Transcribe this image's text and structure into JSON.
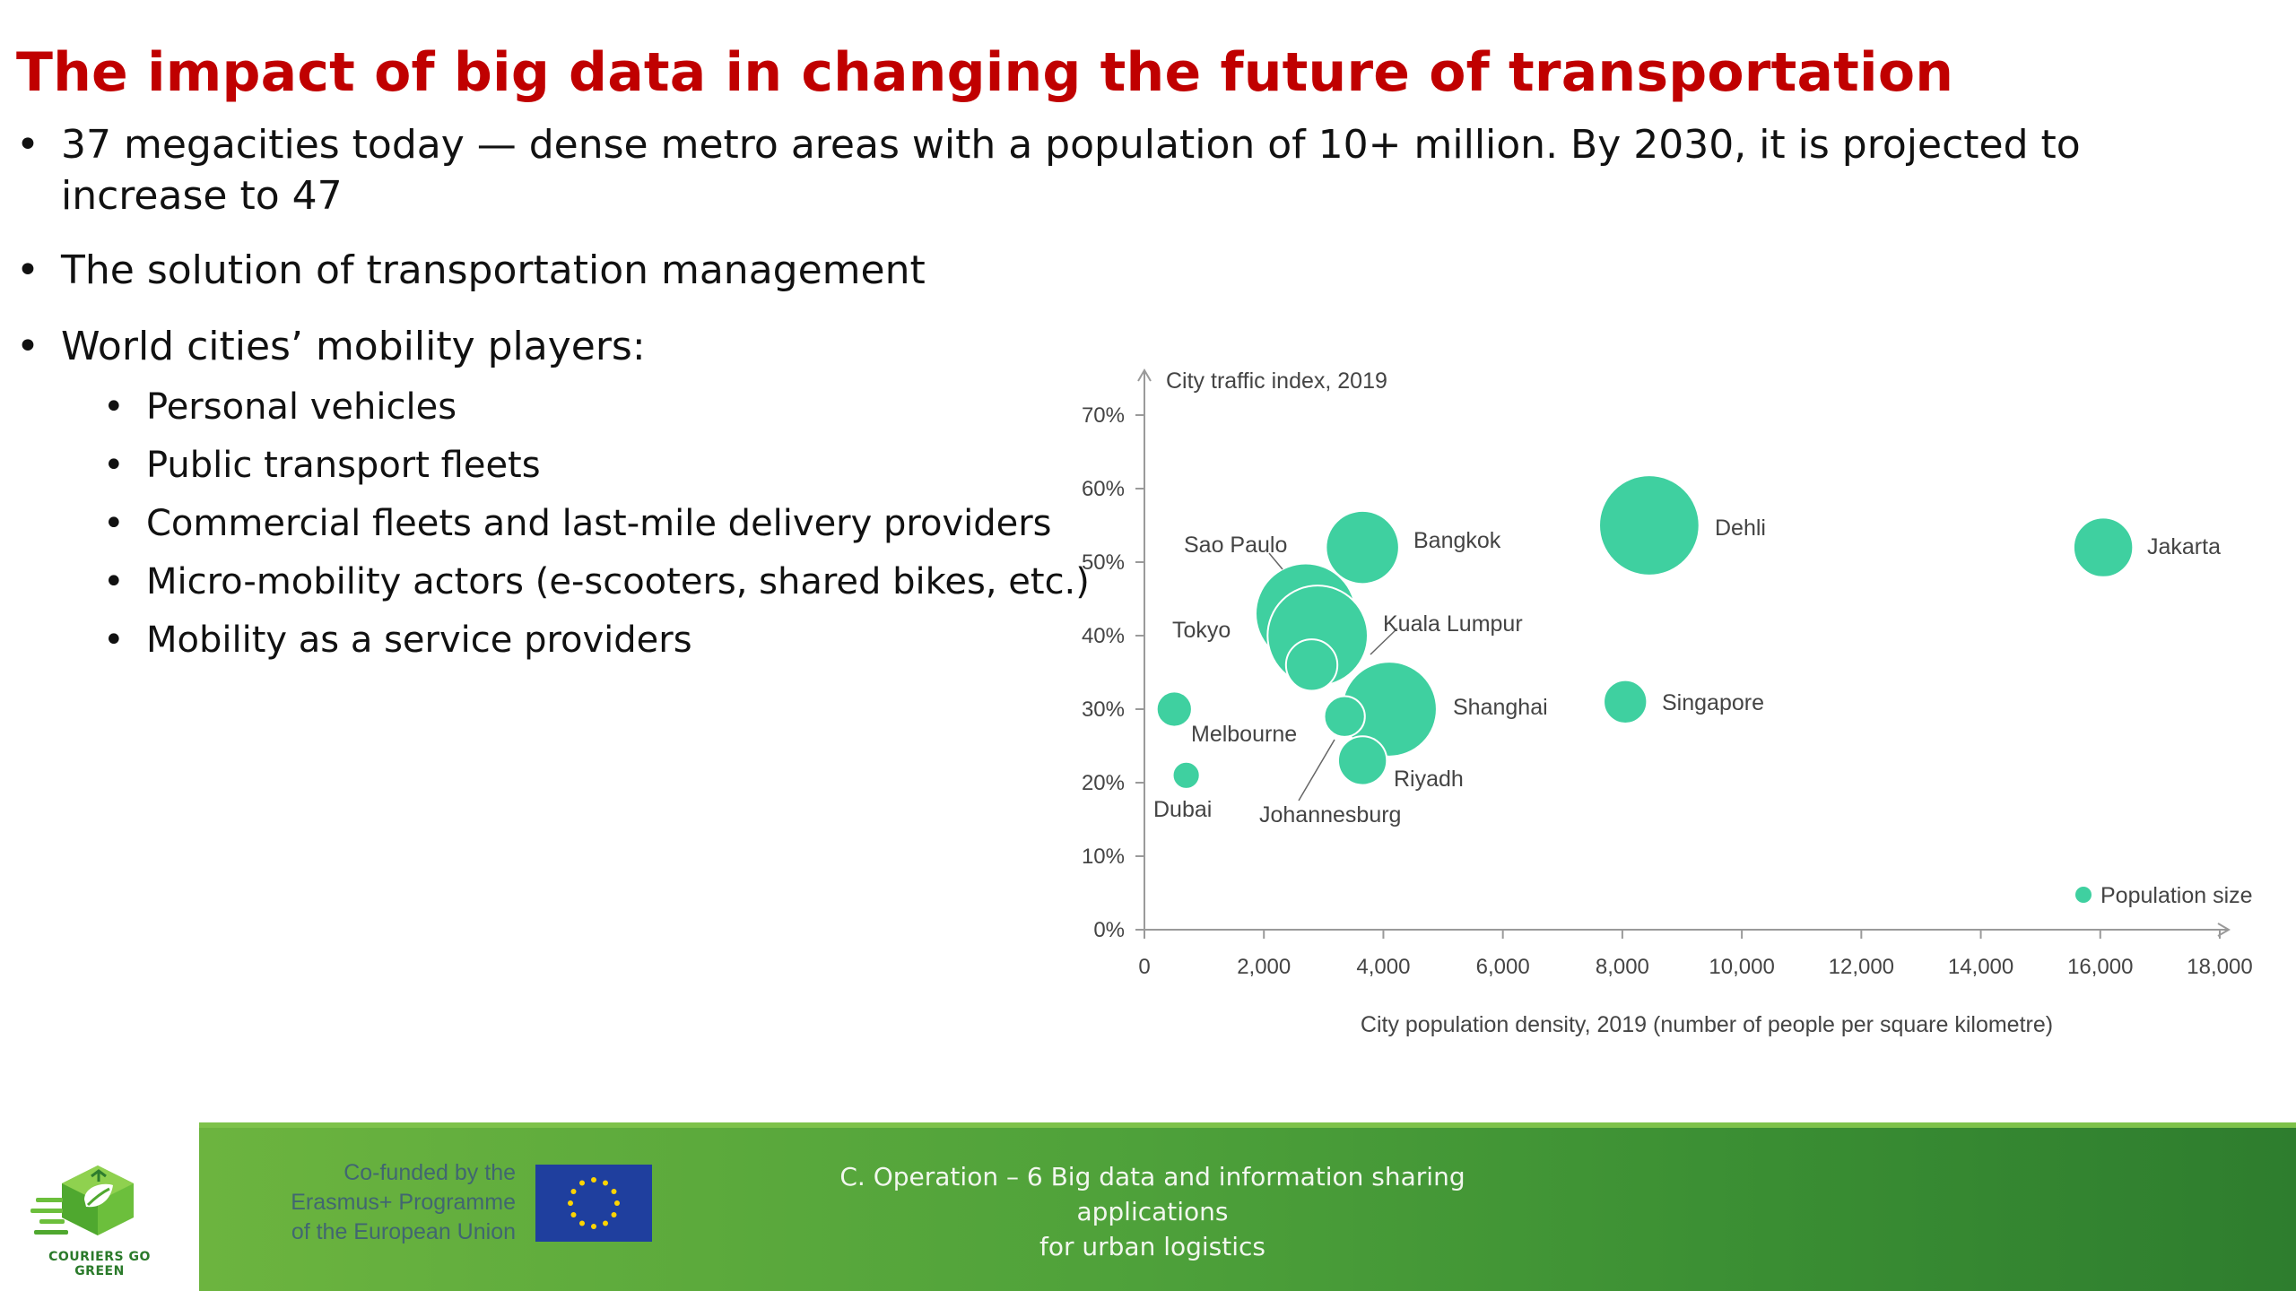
{
  "title": "The impact of big data in changing the future of transportation",
  "bullets": [
    "37 megacities today — dense metro areas with a population of 10+ million. By 2030, it is projected to increase to 47",
    "The solution of transportation management",
    "World cities’ mobility players:"
  ],
  "sub_bullets": [
    "Personal vehicles",
    "Public transport fleets",
    "Commercial fleets and last-mile delivery providers",
    "Micro-mobility actors (e-scooters, shared bikes, etc.)",
    "Mobility as a service providers"
  ],
  "bullet_char": "•",
  "chart_data": {
    "type": "scatter",
    "variant": "bubble",
    "ylabel": "City traffic index, 2019",
    "xlabel": "City population density, 2019 (number of people per square kilometre)",
    "xlim": [
      0,
      18000
    ],
    "ylim": [
      0,
      70
    ],
    "xticks": [
      0,
      2000,
      4000,
      6000,
      8000,
      10000,
      12000,
      14000,
      16000,
      18000
    ],
    "xtick_labels": [
      "0",
      "2,000",
      "4,000",
      "6,000",
      "8,000",
      "10,000",
      "12,000",
      "14,000",
      "16,000",
      "18,000"
    ],
    "yticks": [
      0,
      10,
      20,
      30,
      40,
      50,
      60,
      70
    ],
    "ytick_labels": [
      "0%",
      "10%",
      "20%",
      "30%",
      "40%",
      "50%",
      "60%",
      "70%"
    ],
    "legend": {
      "label": "Population size",
      "position": "bottom-right"
    },
    "bubble_color": "#3fd0a0",
    "grid": false,
    "points": [
      {
        "name": "Sao Paulo",
        "x": 2700,
        "y": 43,
        "size": 37
      },
      {
        "name": "Tokyo",
        "x": 2900,
        "y": 40,
        "size": 37
      },
      {
        "name": "Bangkok",
        "x": 3650,
        "y": 52,
        "size": 27
      },
      {
        "name": "Dehli",
        "x": 8450,
        "y": 55,
        "size": 37
      },
      {
        "name": "Jakarta",
        "x": 16050,
        "y": 52,
        "size": 22
      },
      {
        "name": "Kuala Lumpur",
        "x": 2800,
        "y": 36,
        "size": 19
      },
      {
        "name": "Shanghai",
        "x": 4100,
        "y": 30,
        "size": 35
      },
      {
        "name": "Singapore",
        "x": 8050,
        "y": 31,
        "size": 16
      },
      {
        "name": "Melbourne",
        "x": 500,
        "y": 30,
        "size": 13
      },
      {
        "name": "Johannesburg",
        "x": 3350,
        "y": 29,
        "size": 15
      },
      {
        "name": "Riyadh",
        "x": 3650,
        "y": 23,
        "size": 18
      },
      {
        "name": "Dubai",
        "x": 700,
        "y": 21,
        "size": 10
      }
    ]
  },
  "footer": {
    "cofunded": [
      "Co-funded by the",
      "Erasmus+ Programme",
      "of the European Union"
    ],
    "caption": [
      "C. Operation – 6 Big data and information sharing applications",
      "for urban logistics"
    ],
    "logo_text": "COURIERS GO GREEN",
    "band_color": "#4ea13a"
  }
}
